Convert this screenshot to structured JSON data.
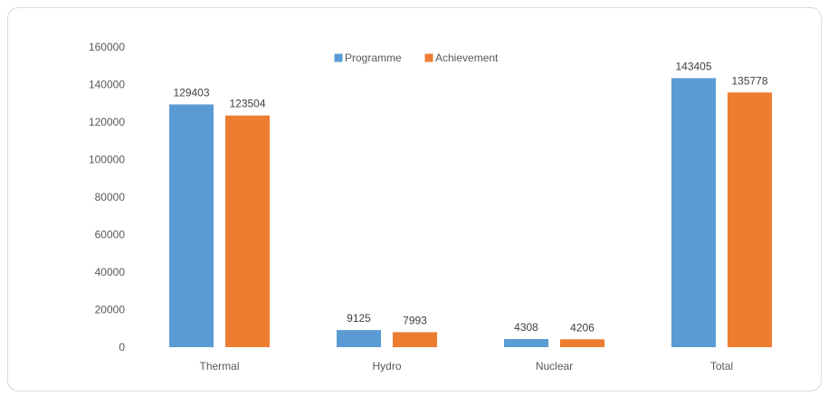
{
  "chart_data": {
    "type": "bar",
    "categories": [
      "Thermal",
      "Hydro",
      "Nuclear",
      "Total"
    ],
    "series": [
      {
        "name": "Programme",
        "values": [
          129403,
          9125,
          4308,
          143405
        ],
        "color": "#5B9BD5"
      },
      {
        "name": "Achievement",
        "values": [
          123504,
          7993,
          4206,
          135778
        ],
        "color": "#ED7D31"
      }
    ],
    "ylim": [
      0,
      160000
    ],
    "yticks": [
      "0",
      "20000",
      "40000",
      "60000",
      "80000",
      "100000",
      "120000",
      "140000",
      "160000"
    ],
    "grid": false,
    "legend_position": "top",
    "title": "",
    "xlabel": "",
    "ylabel": ""
  }
}
